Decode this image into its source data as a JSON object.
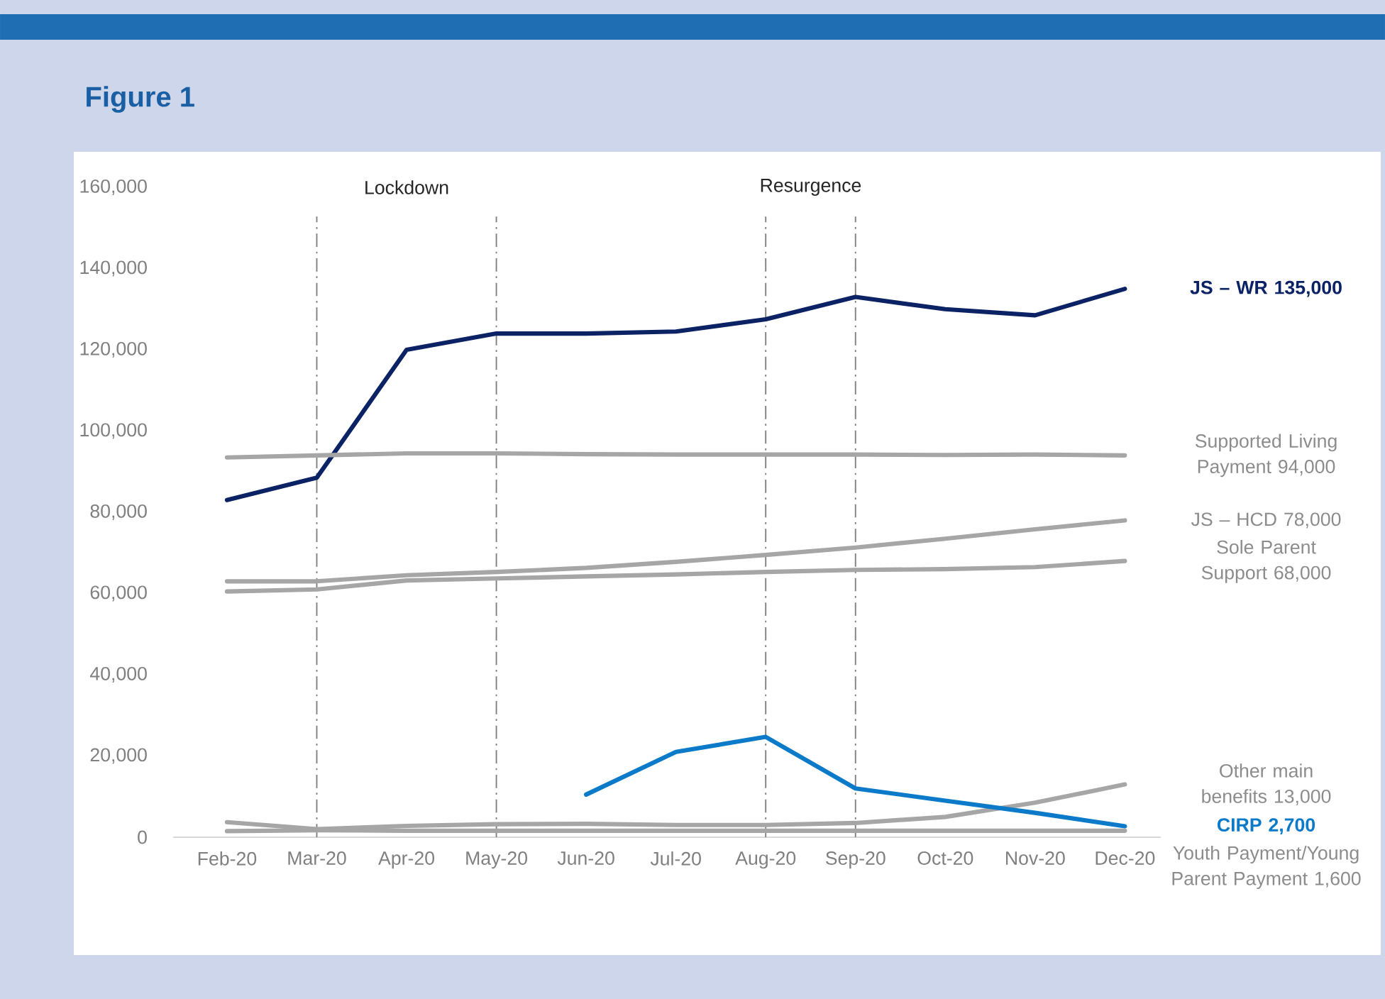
{
  "chart_data": {
    "type": "line",
    "title": "Figure 1",
    "categories": [
      "Feb-20",
      "Mar-20",
      "Apr-20",
      "May-20",
      "Jun-20",
      "Jul-20",
      "Aug-20",
      "Sep-20",
      "Oct-20",
      "Nov-20",
      "Dec-20"
    ],
    "series": [
      {
        "name": "JS – WR 135,000",
        "color": "#0b2265",
        "values": [
          83000,
          88500,
          120000,
          124000,
          124000,
          124500,
          127500,
          133000,
          130000,
          128500,
          135000
        ]
      },
      {
        "name": "Supported Living Payment 94,000",
        "color": "#a6a6a6",
        "values": [
          93500,
          94000,
          94500,
          94500,
          94300,
          94200,
          94200,
          94200,
          94100,
          94200,
          94000
        ]
      },
      {
        "name": "JS – HCD 78,000",
        "color": "#a6a6a6",
        "values": [
          63000,
          63000,
          64500,
          65300,
          66300,
          67800,
          69500,
          71300,
          73500,
          75800,
          78000
        ]
      },
      {
        "name": "Sole Parent Support 68,000",
        "color": "#a6a6a6",
        "values": [
          60500,
          61000,
          63200,
          63700,
          64200,
          64700,
          65300,
          65800,
          66000,
          66500,
          68000
        ]
      },
      {
        "name": "Other main benefits 13,000",
        "color": "#a6a6a6",
        "values": [
          3700,
          2000,
          2800,
          3200,
          3300,
          3000,
          3000,
          3500,
          5000,
          8500,
          13000
        ]
      },
      {
        "name": "CIRP 2,700",
        "color": "#0a7ac9",
        "values": [
          null,
          null,
          null,
          null,
          10500,
          21000,
          24700,
          12000,
          9000,
          6000,
          2700
        ]
      },
      {
        "name": "Youth Payment/Young Parent Payment 1,600",
        "color": "#a6a6a6",
        "values": [
          1500,
          1700,
          1600,
          1600,
          1600,
          1600,
          1600,
          1600,
          1600,
          1600,
          1600
        ]
      }
    ],
    "ylim": [
      0,
      160000
    ],
    "yticks": [
      0,
      {
        "value": 20000,
        "label": "20,000"
      },
      {
        "value": 40000,
        "label": "40,000"
      },
      {
        "value": 60000,
        "label": "60,000"
      },
      {
        "value": 80000,
        "label": "80,000"
      },
      {
        "value": 100000,
        "label": "100,000"
      },
      {
        "value": 120000,
        "label": "120,000"
      },
      {
        "value": 140000,
        "label": "140,000"
      },
      {
        "value": 160000,
        "label": "160,000"
      }
    ],
    "ref_lines": [
      {
        "axis": "x",
        "value": "Mar-20",
        "color": "#7f7f7f",
        "line_style": "dashed"
      },
      {
        "axis": "x",
        "value": "May-20",
        "color": "#7f7f7f",
        "line_style": "dashed"
      },
      {
        "axis": "x",
        "value": "Aug-20",
        "color": "#7f7f7f",
        "line_style": "dashed"
      },
      {
        "axis": "x",
        "value": "Sep-20",
        "color": "#7f7f7f",
        "line_style": "dashed"
      }
    ],
    "annotations": [
      "Lockdown",
      "Resurgence"
    ]
  }
}
